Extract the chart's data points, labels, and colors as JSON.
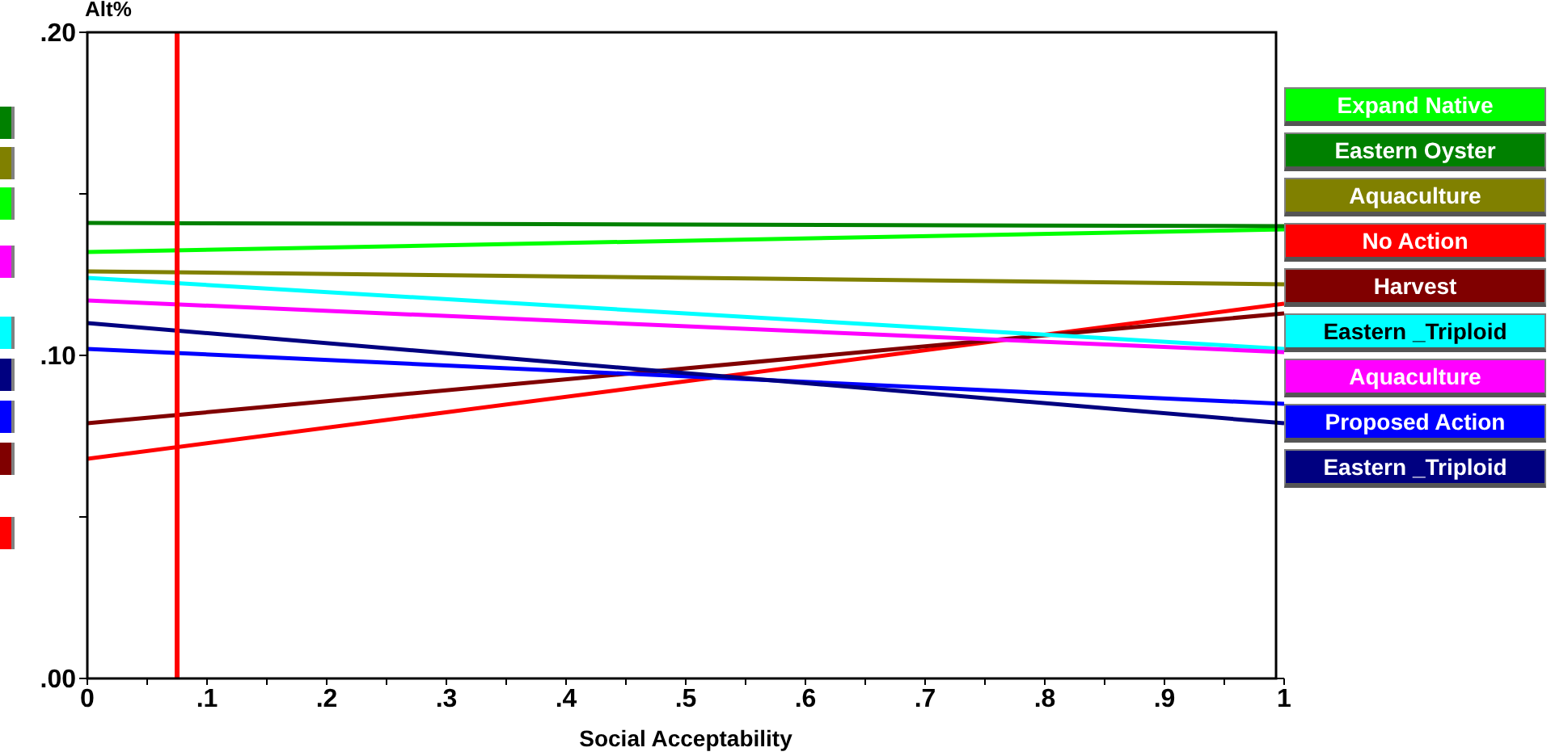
{
  "chart_data": {
    "type": "line",
    "xlabel": "Social Acceptability",
    "ylabel": "Alt%",
    "x": [
      0,
      1
    ],
    "series": [
      {
        "name": "Expand Native",
        "color": "#00ff00",
        "values": [
          0.132,
          0.139
        ]
      },
      {
        "name": "Eastern Oyster",
        "color": "#008000",
        "values": [
          0.141,
          0.14
        ]
      },
      {
        "name": "Aquaculture",
        "color": "#808000",
        "values": [
          0.126,
          0.122
        ]
      },
      {
        "name": "No Action",
        "color": "#ff0000",
        "values": [
          0.068,
          0.116
        ]
      },
      {
        "name": "Harvest",
        "color": "#800000",
        "values": [
          0.079,
          0.113
        ]
      },
      {
        "name": "Eastern _Triploid",
        "color": "#00ffff",
        "values": [
          0.124,
          0.102
        ]
      },
      {
        "name": "Aquaculture",
        "color": "#ff00ff",
        "values": [
          0.117,
          0.101
        ]
      },
      {
        "name": "Proposed Action",
        "color": "#0000ff",
        "values": [
          0.102,
          0.085
        ]
      },
      {
        "name": "Eastern _Triploid",
        "color": "#000080",
        "values": [
          0.11,
          0.079
        ]
      }
    ],
    "xlim": [
      0,
      1
    ],
    "xticks": [
      {
        "value": 0,
        "label": "0"
      },
      {
        "value": 0.05,
        "label": null
      },
      {
        "value": 0.1,
        "label": ".1"
      },
      {
        "value": 0.15,
        "label": null
      },
      {
        "value": 0.2,
        "label": ".2"
      },
      {
        "value": 0.25,
        "label": null
      },
      {
        "value": 0.3,
        "label": ".3"
      },
      {
        "value": 0.35,
        "label": null
      },
      {
        "value": 0.4,
        "label": ".4"
      },
      {
        "value": 0.45,
        "label": null
      },
      {
        "value": 0.5,
        "label": ".5"
      },
      {
        "value": 0.55,
        "label": null
      },
      {
        "value": 0.6,
        "label": ".6"
      },
      {
        "value": 0.65,
        "label": null
      },
      {
        "value": 0.7,
        "label": ".7"
      },
      {
        "value": 0.75,
        "label": null
      },
      {
        "value": 0.8,
        "label": ".8"
      },
      {
        "value": 0.85,
        "label": null
      },
      {
        "value": 0.9,
        "label": ".9"
      },
      {
        "value": 0.95,
        "label": null
      },
      {
        "value": 1,
        "label": "1"
      }
    ],
    "ylim": [
      0,
      0.2
    ],
    "yticks": [
      {
        "value": 0,
        "label": ".00"
      },
      {
        "value": 0.05,
        "label": null
      },
      {
        "value": 0.1,
        "label": ".10"
      },
      {
        "value": 0.15,
        "label": null
      },
      {
        "value": 0.2,
        "label": ".20"
      }
    ],
    "ref_lines": [
      {
        "axis": "x",
        "value": 0.075,
        "color": "#ff0000"
      }
    ],
    "grid": false,
    "legend": "right",
    "marker": "none",
    "line_style": "solid"
  }
}
